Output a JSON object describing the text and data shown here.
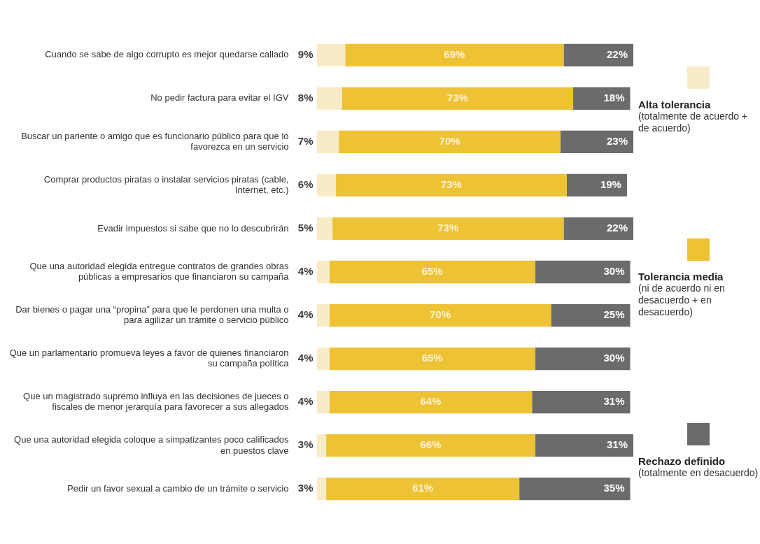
{
  "chart_data": {
    "type": "bar",
    "orientation": "horizontal",
    "stacked": true,
    "grid": false,
    "legend": "right",
    "tick_labels": "y",
    "categories": [
      "Cuando se sabe de algo corrupto es mejor quedarse callado",
      "No pedir factura para evitar el IGV",
      "Buscar un pariente o amigo que es funcionario público para que lo favorezca en un servicio",
      "Comprar productos piratas o instalar servicios piratas (cable, Internet, etc.)",
      "Evadir impuestos si sabe que no lo descubrirán",
      "Que una autoridad elegida entregue contratos de grandes obras públicas a empresarios que financiaron su campaña",
      "Dar bienes o pagar una “propina” para que le perdonen una multa o para agilizar un trámite o servicio público",
      "Que un parlamentario promueva leyes a favor de quienes financiaron su campaña política",
      "Que un magistrado supremo influya en las decisiones de jueces o fiscales de menor jerarquía para favorecer a sus allegados",
      "Que una autoridad elegida coloque a simpatizantes poco calificados en puestos clave",
      "Pedir un favor sexual a cambio de un trámite o servicio"
    ],
    "series": [
      {
        "name": "Alta tolerancia (totalmente de acuerdo + de acuerdo)",
        "color": "#f8ecc8",
        "values": [
          9,
          8,
          7,
          6,
          5,
          4,
          4,
          4,
          4,
          3,
          3
        ],
        "value_labels": [
          "9%",
          "8%",
          "7%",
          "6%",
          "5%",
          "4%",
          "4%",
          "4%",
          "4%",
          "3%",
          "3%"
        ]
      },
      {
        "name": "Tolerancia media (ni de acuerdo ni en desacuerdo + en desacuerdo)",
        "color": "#eec235",
        "values": [
          69,
          73,
          70,
          73,
          73,
          65,
          70,
          65,
          64,
          66,
          61
        ],
        "value_labels": [
          "69%",
          "73%",
          "70%",
          "73%",
          "73%",
          "65%",
          "70%",
          "65%",
          "64%",
          "66%",
          "61%"
        ]
      },
      {
        "name": "Rechazo definido (totalmente en desacuerdo)",
        "color": "#6b6b6b",
        "values": [
          22,
          18,
          23,
          19,
          22,
          30,
          25,
          30,
          31,
          31,
          35
        ],
        "value_labels": [
          "22%",
          "18%",
          "23%",
          "19%",
          "22%",
          "30%",
          "25%",
          "30%",
          "31%",
          "31%",
          "35%"
        ]
      }
    ]
  }
}
